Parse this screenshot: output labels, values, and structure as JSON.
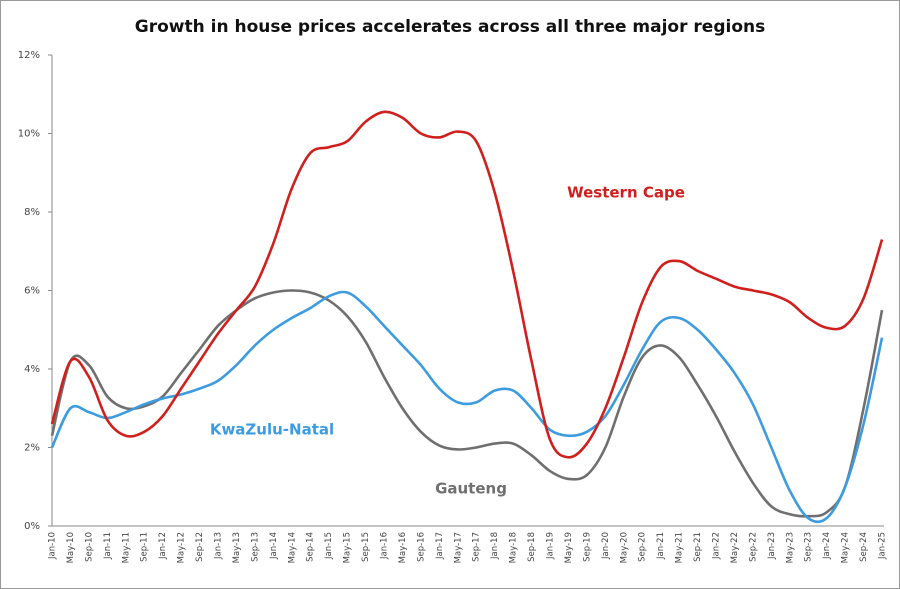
{
  "chart_data": {
    "type": "line",
    "title": "Growth in house prices accelerates across all three major regions",
    "categories": [
      "Jan-10",
      "May-10",
      "Sep-10",
      "Jan-11",
      "May-11",
      "Sep-11",
      "Jan-12",
      "May-12",
      "Sep-12",
      "Jan-13",
      "May-13",
      "Sep-13",
      "Jan-14",
      "May-14",
      "Sep-14",
      "Jan-15",
      "May-15",
      "Sep-15",
      "Jan-16",
      "May-16",
      "Sep-16",
      "Jan-17",
      "May-17",
      "Sep-17",
      "Jan-18",
      "May-18",
      "Sep-18",
      "Jan-19",
      "May-19",
      "Sep-19",
      "Jan-20",
      "May-20",
      "Sep-20",
      "Jan-21",
      "May-21",
      "Sep-21",
      "Jan-22",
      "May-22",
      "Sep-22",
      "Jan-23",
      "May-23",
      "Sep-23",
      "Jan-24",
      "May-24",
      "Sep-24",
      "Jan-25"
    ],
    "series": [
      {
        "name": "Western Cape",
        "color": "#d0201e",
        "values": [
          2.6,
          4.2,
          3.8,
          2.7,
          2.3,
          2.4,
          2.8,
          3.5,
          4.2,
          4.9,
          5.5,
          6.1,
          7.2,
          8.6,
          9.5,
          9.65,
          9.8,
          10.3,
          10.55,
          10.4,
          10.0,
          9.9,
          10.05,
          9.8,
          8.5,
          6.5,
          4.2,
          2.2,
          1.75,
          2.1,
          3.0,
          4.3,
          5.7,
          6.6,
          6.75,
          6.5,
          6.3,
          6.1,
          6.0,
          5.9,
          5.7,
          5.3,
          5.05,
          5.1,
          5.8,
          7.3
        ]
      },
      {
        "name": "KwaZulu-Natal",
        "color": "#3d9be0",
        "values": [
          2.0,
          3.0,
          2.9,
          2.75,
          2.9,
          3.1,
          3.25,
          3.35,
          3.5,
          3.7,
          4.1,
          4.6,
          5.0,
          5.3,
          5.55,
          5.85,
          5.95,
          5.6,
          5.1,
          4.6,
          4.1,
          3.5,
          3.15,
          3.15,
          3.45,
          3.45,
          3.0,
          2.45,
          2.3,
          2.4,
          2.8,
          3.6,
          4.5,
          5.2,
          5.3,
          5.0,
          4.5,
          3.9,
          3.1,
          2.0,
          0.9,
          0.2,
          0.2,
          1.0,
          2.6,
          4.8
        ]
      },
      {
        "name": "Gauteng",
        "color": "#6f6f6f",
        "values": [
          2.3,
          4.2,
          4.1,
          3.3,
          3.0,
          3.05,
          3.3,
          3.9,
          4.5,
          5.1,
          5.5,
          5.8,
          5.95,
          6.0,
          5.95,
          5.75,
          5.35,
          4.7,
          3.8,
          3.0,
          2.4,
          2.05,
          1.95,
          2.0,
          2.1,
          2.1,
          1.8,
          1.4,
          1.2,
          1.3,
          2.0,
          3.3,
          4.3,
          4.6,
          4.3,
          3.6,
          2.8,
          1.9,
          1.1,
          0.5,
          0.3,
          0.25,
          0.35,
          1.0,
          3.0,
          5.5
        ]
      }
    ],
    "ylim": [
      0,
      12
    ],
    "yticks": [
      {
        "value": 0,
        "label": "0%"
      },
      {
        "value": 2,
        "label": "2%"
      },
      {
        "value": 4,
        "label": "4%"
      },
      {
        "value": 6,
        "label": "6%"
      },
      {
        "value": 8,
        "label": "8%"
      },
      {
        "value": 10,
        "label": "10%"
      },
      {
        "value": 12,
        "label": "12%"
      }
    ],
    "grid": false
  }
}
